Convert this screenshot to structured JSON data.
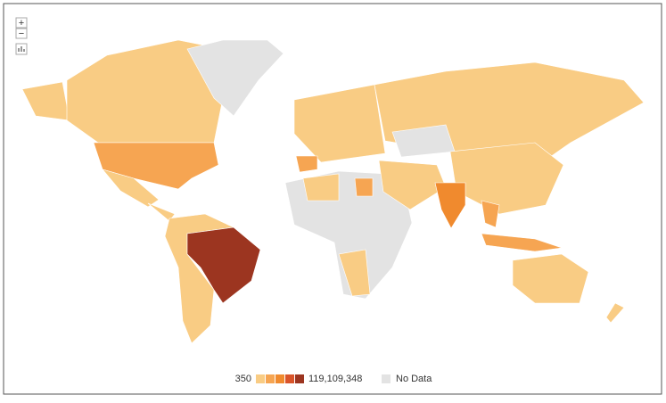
{
  "controls": {
    "zoom_in": "+",
    "zoom_out": "−"
  },
  "legend": {
    "min_label": "350",
    "max_label": "119,109,348",
    "no_data_label": "No Data",
    "colors": [
      "#f9cc84",
      "#f6a552",
      "#f08a2e",
      "#d9542a",
      "#9c3520"
    ],
    "no_data_color": "#e3e3e3"
  }
}
